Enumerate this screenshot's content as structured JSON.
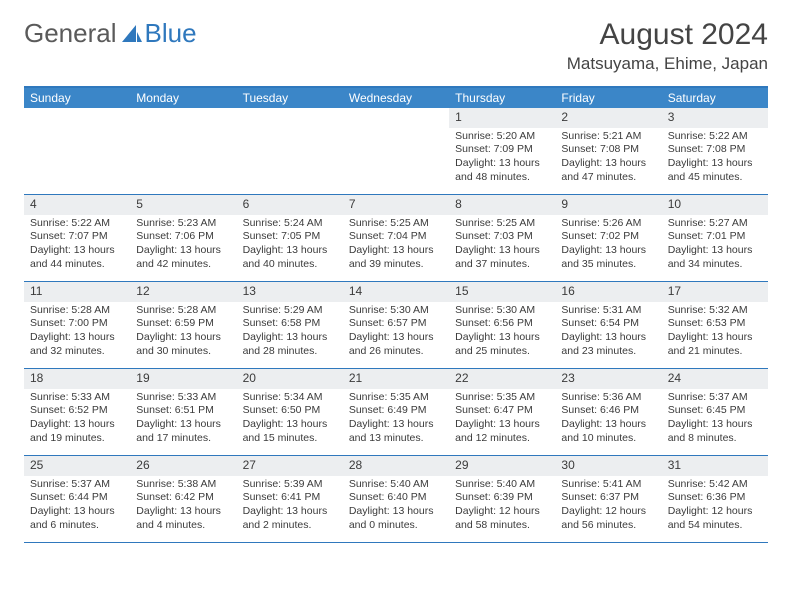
{
  "logo": {
    "part1": "General",
    "part2": "Blue"
  },
  "title": "August 2024",
  "location": "Matsuyama, Ehime, Japan",
  "colors": {
    "header_bar": "#3b86c8",
    "rule": "#2f78bd",
    "daynum_bg": "#eceef0",
    "text": "#3b3b3b",
    "logo_gray": "#5a5a5a",
    "logo_blue": "#2f78bd"
  },
  "dow": [
    "Sunday",
    "Monday",
    "Tuesday",
    "Wednesday",
    "Thursday",
    "Friday",
    "Saturday"
  ],
  "weeks": [
    [
      {
        "n": "",
        "sr": "",
        "ss": "",
        "dl": ""
      },
      {
        "n": "",
        "sr": "",
        "ss": "",
        "dl": ""
      },
      {
        "n": "",
        "sr": "",
        "ss": "",
        "dl": ""
      },
      {
        "n": "",
        "sr": "",
        "ss": "",
        "dl": ""
      },
      {
        "n": "1",
        "sr": "Sunrise: 5:20 AM",
        "ss": "Sunset: 7:09 PM",
        "dl": "Daylight: 13 hours and 48 minutes."
      },
      {
        "n": "2",
        "sr": "Sunrise: 5:21 AM",
        "ss": "Sunset: 7:08 PM",
        "dl": "Daylight: 13 hours and 47 minutes."
      },
      {
        "n": "3",
        "sr": "Sunrise: 5:22 AM",
        "ss": "Sunset: 7:08 PM",
        "dl": "Daylight: 13 hours and 45 minutes."
      }
    ],
    [
      {
        "n": "4",
        "sr": "Sunrise: 5:22 AM",
        "ss": "Sunset: 7:07 PM",
        "dl": "Daylight: 13 hours and 44 minutes."
      },
      {
        "n": "5",
        "sr": "Sunrise: 5:23 AM",
        "ss": "Sunset: 7:06 PM",
        "dl": "Daylight: 13 hours and 42 minutes."
      },
      {
        "n": "6",
        "sr": "Sunrise: 5:24 AM",
        "ss": "Sunset: 7:05 PM",
        "dl": "Daylight: 13 hours and 40 minutes."
      },
      {
        "n": "7",
        "sr": "Sunrise: 5:25 AM",
        "ss": "Sunset: 7:04 PM",
        "dl": "Daylight: 13 hours and 39 minutes."
      },
      {
        "n": "8",
        "sr": "Sunrise: 5:25 AM",
        "ss": "Sunset: 7:03 PM",
        "dl": "Daylight: 13 hours and 37 minutes."
      },
      {
        "n": "9",
        "sr": "Sunrise: 5:26 AM",
        "ss": "Sunset: 7:02 PM",
        "dl": "Daylight: 13 hours and 35 minutes."
      },
      {
        "n": "10",
        "sr": "Sunrise: 5:27 AM",
        "ss": "Sunset: 7:01 PM",
        "dl": "Daylight: 13 hours and 34 minutes."
      }
    ],
    [
      {
        "n": "11",
        "sr": "Sunrise: 5:28 AM",
        "ss": "Sunset: 7:00 PM",
        "dl": "Daylight: 13 hours and 32 minutes."
      },
      {
        "n": "12",
        "sr": "Sunrise: 5:28 AM",
        "ss": "Sunset: 6:59 PM",
        "dl": "Daylight: 13 hours and 30 minutes."
      },
      {
        "n": "13",
        "sr": "Sunrise: 5:29 AM",
        "ss": "Sunset: 6:58 PM",
        "dl": "Daylight: 13 hours and 28 minutes."
      },
      {
        "n": "14",
        "sr": "Sunrise: 5:30 AM",
        "ss": "Sunset: 6:57 PM",
        "dl": "Daylight: 13 hours and 26 minutes."
      },
      {
        "n": "15",
        "sr": "Sunrise: 5:30 AM",
        "ss": "Sunset: 6:56 PM",
        "dl": "Daylight: 13 hours and 25 minutes."
      },
      {
        "n": "16",
        "sr": "Sunrise: 5:31 AM",
        "ss": "Sunset: 6:54 PM",
        "dl": "Daylight: 13 hours and 23 minutes."
      },
      {
        "n": "17",
        "sr": "Sunrise: 5:32 AM",
        "ss": "Sunset: 6:53 PM",
        "dl": "Daylight: 13 hours and 21 minutes."
      }
    ],
    [
      {
        "n": "18",
        "sr": "Sunrise: 5:33 AM",
        "ss": "Sunset: 6:52 PM",
        "dl": "Daylight: 13 hours and 19 minutes."
      },
      {
        "n": "19",
        "sr": "Sunrise: 5:33 AM",
        "ss": "Sunset: 6:51 PM",
        "dl": "Daylight: 13 hours and 17 minutes."
      },
      {
        "n": "20",
        "sr": "Sunrise: 5:34 AM",
        "ss": "Sunset: 6:50 PM",
        "dl": "Daylight: 13 hours and 15 minutes."
      },
      {
        "n": "21",
        "sr": "Sunrise: 5:35 AM",
        "ss": "Sunset: 6:49 PM",
        "dl": "Daylight: 13 hours and 13 minutes."
      },
      {
        "n": "22",
        "sr": "Sunrise: 5:35 AM",
        "ss": "Sunset: 6:47 PM",
        "dl": "Daylight: 13 hours and 12 minutes."
      },
      {
        "n": "23",
        "sr": "Sunrise: 5:36 AM",
        "ss": "Sunset: 6:46 PM",
        "dl": "Daylight: 13 hours and 10 minutes."
      },
      {
        "n": "24",
        "sr": "Sunrise: 5:37 AM",
        "ss": "Sunset: 6:45 PM",
        "dl": "Daylight: 13 hours and 8 minutes."
      }
    ],
    [
      {
        "n": "25",
        "sr": "Sunrise: 5:37 AM",
        "ss": "Sunset: 6:44 PM",
        "dl": "Daylight: 13 hours and 6 minutes."
      },
      {
        "n": "26",
        "sr": "Sunrise: 5:38 AM",
        "ss": "Sunset: 6:42 PM",
        "dl": "Daylight: 13 hours and 4 minutes."
      },
      {
        "n": "27",
        "sr": "Sunrise: 5:39 AM",
        "ss": "Sunset: 6:41 PM",
        "dl": "Daylight: 13 hours and 2 minutes."
      },
      {
        "n": "28",
        "sr": "Sunrise: 5:40 AM",
        "ss": "Sunset: 6:40 PM",
        "dl": "Daylight: 13 hours and 0 minutes."
      },
      {
        "n": "29",
        "sr": "Sunrise: 5:40 AM",
        "ss": "Sunset: 6:39 PM",
        "dl": "Daylight: 12 hours and 58 minutes."
      },
      {
        "n": "30",
        "sr": "Sunrise: 5:41 AM",
        "ss": "Sunset: 6:37 PM",
        "dl": "Daylight: 12 hours and 56 minutes."
      },
      {
        "n": "31",
        "sr": "Sunrise: 5:42 AM",
        "ss": "Sunset: 6:36 PM",
        "dl": "Daylight: 12 hours and 54 minutes."
      }
    ]
  ]
}
